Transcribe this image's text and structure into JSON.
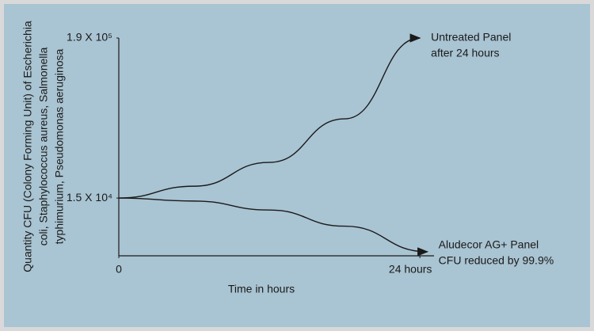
{
  "chart_data": {
    "type": "line",
    "ylabel": [
      "Quantity CFU (Colony Forming Unit) of Escherichia",
      "coli, Staphylococcus aureus, Salmonella",
      "typhimurium, Pseudomonas aeruginosa"
    ],
    "xlabel": "Time in hours",
    "xlim": [
      0,
      25
    ],
    "xticks": [
      0,
      {
        "value": 24,
        "label": "24 hours"
      }
    ],
    "ylim": [
      6000,
      190000
    ],
    "log_y": true,
    "yticks": [
      {
        "value": 15000,
        "label": "1.5 X 10⁴"
      },
      {
        "value": 190000,
        "label": "1.9 X 10⁵"
      }
    ],
    "series": [
      {
        "name": [
          "Untreated Panel",
          "after 24 hours"
        ],
        "color": "#1a1a1a",
        "x": [
          0,
          6,
          12,
          18,
          24
        ],
        "values": [
          15000,
          18100,
          26400,
          52700,
          190000
        ]
      },
      {
        "name": [
          "Aludecor AG+ Panel",
          "CFU reduced by 99.9%"
        ],
        "color": "#1a1a1a",
        "x": [
          0,
          6,
          12,
          18,
          24.6
        ],
        "values": [
          15000,
          14300,
          12400,
          9600,
          6400
        ]
      }
    ]
  }
}
